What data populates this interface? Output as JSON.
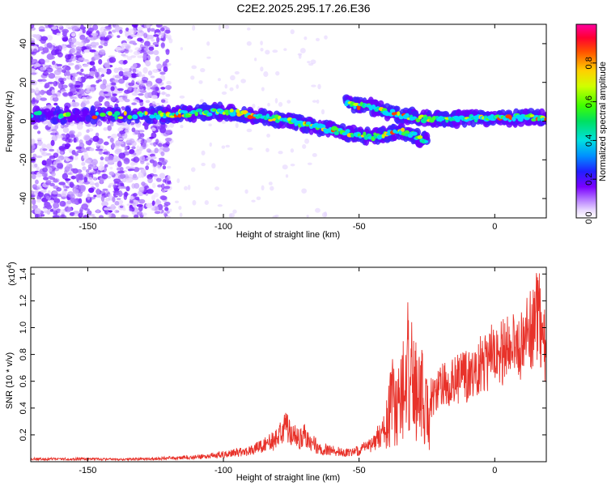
{
  "title": "C2E2.2025.295.17.26.E36",
  "chart_data": [
    {
      "type": "heatmap",
      "xlabel": "Height of straight line (km)",
      "ylabel": "Frequency (Hz)",
      "xlim": [
        -171,
        19
      ],
      "ylim": [
        -50,
        50
      ],
      "xticks": [
        -150,
        -100,
        -50,
        0
      ],
      "yticks": [
        -40,
        -20,
        0,
        20,
        40
      ],
      "colorbar": {
        "label": "Normalized spectral amplitude",
        "range": [
          0,
          1
        ],
        "ticks": [
          0.0,
          0.2,
          0.4,
          0.6,
          0.8
        ],
        "tick_labels": [
          "0.0",
          "0.2",
          "0.4",
          "0.6",
          "0.8"
        ]
      },
      "ridge": [
        {
          "name": "main",
          "points": [
            [
              -171,
              3
            ],
            [
              -125,
              3
            ],
            [
              -100,
              5
            ],
            [
              -80,
              1
            ],
            [
              -65,
              -3
            ],
            [
              -55,
              -6
            ],
            [
              -45,
              -8
            ],
            [
              -35,
              -6
            ]
          ]
        },
        {
          "name": "upper",
          "points": [
            [
              -55,
              9
            ],
            [
              -45,
              7
            ],
            [
              -35,
              3
            ],
            [
              -25,
              1
            ],
            [
              0,
              1.5
            ],
            [
              19,
              2
            ]
          ]
        },
        {
          "name": "lower",
          "points": [
            [
              -35,
              -5
            ],
            [
              -25,
              -10
            ]
          ]
        }
      ]
    },
    {
      "type": "line",
      "xlabel": "Height of straight line (km)",
      "ylabel": "SNR (10 * v/v)",
      "yscale_label": "(x10",
      "yscale_exp": "4",
      "yscale_close": ")",
      "xlim": [
        -171,
        19
      ],
      "ylim": [
        0,
        1.45
      ],
      "xticks": [
        -150,
        -100,
        -50,
        0
      ],
      "yticks": [
        0.2,
        0.4,
        0.6,
        0.8,
        1.0,
        1.2,
        1.4
      ],
      "ytick_labels": [
        "0.2",
        "0.4",
        "0.6",
        "0.8",
        "1.0",
        "1.2",
        "1.4"
      ],
      "series": [
        {
          "name": "SNR",
          "color": "#e8322a",
          "x": [
            -171,
            -160,
            -150,
            -140,
            -130,
            -120,
            -110,
            -100,
            -95,
            -90,
            -85,
            -80,
            -77,
            -75,
            -72,
            -70,
            -65,
            -60,
            -55,
            -50,
            -45,
            -40,
            -38,
            -35,
            -32,
            -30,
            -27,
            -25,
            -20,
            -15,
            -10,
            -5,
            0,
            5,
            10,
            14,
            16,
            19
          ],
          "y": [
            0.03,
            0.03,
            0.03,
            0.025,
            0.03,
            0.04,
            0.05,
            0.08,
            0.1,
            0.12,
            0.18,
            0.25,
            0.4,
            0.3,
            0.25,
            0.3,
            0.15,
            0.12,
            0.1,
            0.12,
            0.2,
            0.4,
            0.7,
            0.85,
            1.1,
            0.9,
            0.85,
            0.55,
            0.7,
            0.75,
            0.8,
            0.9,
            1.0,
            1.05,
            1.1,
            1.25,
            1.4,
            1.0
          ]
        }
      ]
    }
  ]
}
